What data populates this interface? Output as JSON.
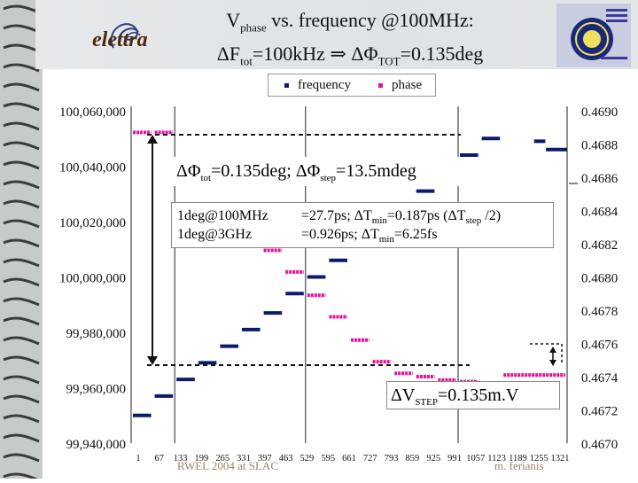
{
  "title": {
    "line1_main": "V",
    "line1_sub": "phase",
    "line1_rest": " vs. frequency @100MHz:",
    "line2_a": "ΔF",
    "line2_a_sub": "tot",
    "line2_b": "=100kHz ⇒ ΔΦ",
    "line2_b_sub": "TOT",
    "line2_c": "=0.135deg"
  },
  "logo_left_text": "elettra",
  "legend": {
    "frequency": "frequency",
    "phase": "phase"
  },
  "annotations": {
    "box1": {
      "a": "ΔΦ",
      "a_sub": "tot",
      "b": "=0.135deg; ΔΦ",
      "b_sub": "step",
      "c": "=13.5mdeg"
    },
    "box2_row1_left": "1deg@100MHz",
    "box2_row1_right_a": "=27.7ps; ΔT",
    "box2_row1_right_a_sub": "min",
    "box2_row1_right_b": "=0.187ps (ΔT",
    "box2_row1_right_b_sub": "step",
    "box2_row1_right_c": " /2)",
    "box2_row2_left": "1deg@3GHz",
    "box2_row2_right_a": "=0.926ps; ΔT",
    "box2_row2_right_a_sub": "min",
    "box2_row2_right_b": "=6.25fs",
    "box3_a": "ΔV",
    "box3_sub": "STEP",
    "box3_b": "=0.135m.V"
  },
  "footer": {
    "left": "RWEL 2004 at SLAC",
    "right": "m. ferianis"
  },
  "colors": {
    "frequency": "#0b1a6e",
    "phase": "#e8109a",
    "background": "#ffffff",
    "grid": "#000000"
  },
  "chart_data": {
    "type": "scatter",
    "x_tick_labels": [
      "1",
      "67",
      "133",
      "199",
      "265",
      "331",
      "397",
      "463",
      "529",
      "595",
      "661",
      "727",
      "793",
      "859",
      "925",
      "991",
      "1057",
      "1123",
      "1189",
      "1255",
      "1321"
    ],
    "xlim": [
      1,
      1321
    ],
    "y_left": {
      "ticks": [
        "100,060,000",
        "100,040,000",
        "100,020,000",
        "100,000,000",
        "99,980,000",
        "99,960,000",
        "99,940,000"
      ],
      "ylim": [
        99940000,
        100060000
      ]
    },
    "y_right": {
      "ticks": [
        "0.4690",
        "0.4688",
        "0.4686",
        "0.4684",
        "0.4682",
        "0.4680",
        "0.4678",
        "0.4676",
        "0.4674",
        "0.4672",
        "0.4670"
      ],
      "ylim": [
        0.467,
        0.469
      ]
    },
    "series": [
      {
        "name": "frequency",
        "axis": "left",
        "segments": [
          {
            "x0": 1,
            "x1": 67,
            "y": 99950000
          },
          {
            "x0": 67,
            "x1": 133,
            "y": 99957000
          },
          {
            "x0": 133,
            "x1": 199,
            "y": 99963000
          },
          {
            "x0": 199,
            "x1": 265,
            "y": 99969000
          },
          {
            "x0": 265,
            "x1": 331,
            "y": 99975000
          },
          {
            "x0": 331,
            "x1": 397,
            "y": 99981000
          },
          {
            "x0": 397,
            "x1": 463,
            "y": 99987000
          },
          {
            "x0": 463,
            "x1": 529,
            "y": 99994000
          },
          {
            "x0": 529,
            "x1": 595,
            "y": 100000000
          },
          {
            "x0": 595,
            "x1": 661,
            "y": 100006000
          },
          {
            "x0": 661,
            "x1": 727,
            "y": 100012000
          },
          {
            "x0": 727,
            "x1": 793,
            "y": 100019000
          },
          {
            "x0": 793,
            "x1": 859,
            "y": 100025000
          },
          {
            "x0": 859,
            "x1": 925,
            "y": 100031000
          },
          {
            "x0": 925,
            "x1": 991,
            "y": 100038000
          },
          {
            "x0": 991,
            "x1": 1057,
            "y": 100044000
          },
          {
            "x0": 1057,
            "x1": 1123,
            "y": 100050000
          }
        ]
      },
      {
        "name": "phase",
        "axis": "right",
        "segments": [
          {
            "x0": 1,
            "x1": 67,
            "y": 0.46887
          },
          {
            "x0": 67,
            "x1": 133,
            "y": 0.46887
          },
          {
            "x0": 133,
            "x1": 199,
            "y": 0.4687
          },
          {
            "x0": 199,
            "x1": 265,
            "y": 0.46857
          },
          {
            "x0": 265,
            "x1": 331,
            "y": 0.46843
          },
          {
            "x0": 331,
            "x1": 397,
            "y": 0.4683
          },
          {
            "x0": 397,
            "x1": 463,
            "y": 0.46816
          },
          {
            "x0": 463,
            "x1": 529,
            "y": 0.46803
          },
          {
            "x0": 529,
            "x1": 595,
            "y": 0.46789
          },
          {
            "x0": 595,
            "x1": 661,
            "y": 0.46776
          },
          {
            "x0": 661,
            "x1": 727,
            "y": 0.46762
          },
          {
            "x0": 727,
            "x1": 793,
            "y": 0.46749
          },
          {
            "x0": 793,
            "x1": 859,
            "y": 0.46742
          },
          {
            "x0": 859,
            "x1": 925,
            "y": 0.4674
          },
          {
            "x0": 925,
            "x1": 991,
            "y": 0.46738
          },
          {
            "x0": 991,
            "x1": 1057,
            "y": 0.46737
          },
          {
            "x0": 1057,
            "x1": 1123,
            "y": 0.46736
          },
          {
            "x0": 1123,
            "x1": 1321,
            "y": 0.46741
          }
        ]
      }
    ],
    "extra_marks": [
      {
        "series": "frequency",
        "x0": 1221,
        "x1": 1255,
        "y": 100049000,
        "note": "segment at upper right"
      },
      {
        "series": "frequency",
        "x0": 1257,
        "x1": 1321,
        "y": 100046000
      }
    ],
    "grid": true,
    "legend_position": "top-center"
  }
}
